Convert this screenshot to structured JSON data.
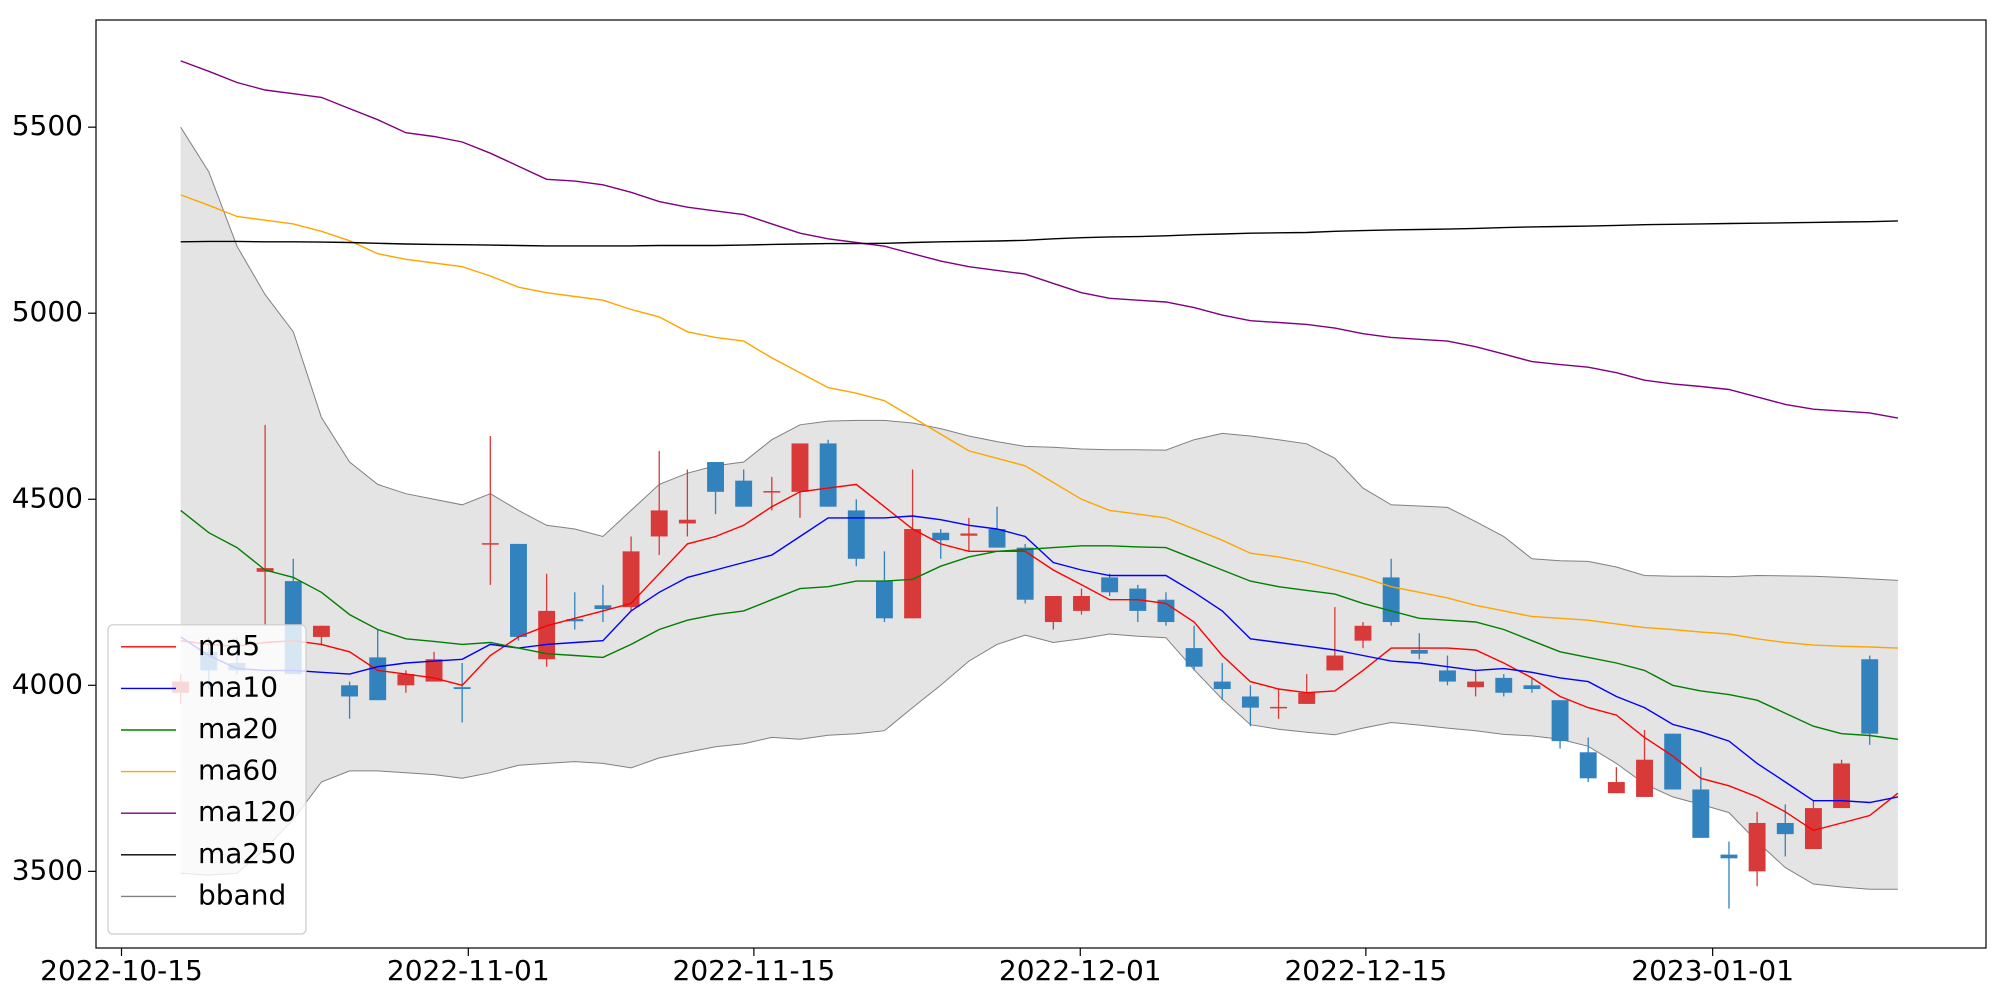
{
  "chart_data": {
    "type": "candlestick",
    "x": [
      2.9,
      4.28,
      5.66,
      7.04,
      8.42,
      9.8,
      11.18,
      12.56,
      13.94,
      15.32,
      16.7,
      18.08,
      19.46,
      20.84,
      22.22,
      23.6,
      24.98,
      26.36,
      27.74,
      29.12,
      30.5,
      31.88,
      33.26,
      34.64,
      36.02,
      37.4,
      38.78,
      40.16,
      41.54,
      42.92,
      44.3,
      45.68,
      47.06,
      48.44,
      49.82,
      51.2,
      52.58,
      53.96,
      55.34,
      56.72,
      58.1,
      59.48,
      60.86,
      62.24,
      63.62,
      65,
      66.38,
      67.76,
      69.14,
      70.52,
      71.9,
      73.28,
      74.66,
      76.04,
      77.42,
      78.8,
      80.18,
      81.56,
      82.94,
      84.32,
      85.7,
      87.08
    ],
    "open": [
      3980,
      4090,
      4060,
      4305,
      4280,
      4130,
      4000,
      4075,
      4000,
      4010,
      3995,
      4378,
      4380,
      4070,
      4178,
      4215,
      4210,
      4400,
      4435,
      4600,
      4550,
      4518,
      4520,
      4650,
      4470,
      4280,
      4180,
      4410,
      4402,
      4420,
      4370,
      4170,
      4200,
      4290,
      4260,
      4230,
      4100,
      4010,
      3970,
      3938,
      3950,
      4040,
      4120,
      4290,
      4095,
      4040,
      3995,
      4020,
      4000,
      3960,
      3820,
      3710,
      3700,
      3870,
      3720,
      3545,
      3500,
      3630,
      3560,
      3670,
      4070,
      null
    ],
    "high": [
      4030,
      4130,
      4130,
      4700,
      4340,
      4160,
      4010,
      4150,
      4040,
      4090,
      4060,
      4670,
      4380,
      4300,
      4250,
      4270,
      4400,
      4630,
      4580,
      4600,
      4580,
      4560,
      4650,
      4660,
      4500,
      4360,
      4580,
      4420,
      4450,
      4480,
      4380,
      4240,
      4260,
      4300,
      4270,
      4250,
      4160,
      4060,
      4000,
      3990,
      4030,
      4210,
      4170,
      4340,
      4140,
      4080,
      4040,
      4030,
      4020,
      3960,
      3860,
      3780,
      3880,
      3870,
      3780,
      3580,
      3660,
      3680,
      3690,
      3800,
      4080,
      null
    ],
    "low": [
      3950,
      3990,
      4030,
      4160,
      4030,
      4110,
      3910,
      3960,
      3980,
      4010,
      3900,
      4270,
      4120,
      4050,
      4150,
      4170,
      4200,
      4350,
      4400,
      4460,
      4480,
      4470,
      4450,
      4480,
      4320,
      4170,
      4180,
      4340,
      4360,
      4370,
      4220,
      4150,
      4190,
      4240,
      4170,
      4160,
      4040,
      3960,
      3890,
      3910,
      3950,
      4040,
      4100,
      4160,
      4070,
      4000,
      3970,
      3970,
      3980,
      3830,
      3740,
      3710,
      3700,
      3720,
      3590,
      3400,
      3460,
      3540,
      3560,
      3670,
      3840,
      null
    ],
    "close": [
      4010,
      4040,
      4040,
      4315,
      4030,
      4160,
      3970,
      3960,
      4030,
      4070,
      3990,
      4382,
      4130,
      4200,
      4172,
      4205,
      4360,
      4470,
      4445,
      4520,
      4480,
      4522,
      4650,
      4480,
      4340,
      4180,
      4420,
      4390,
      4408,
      4370,
      4230,
      4240,
      4240,
      4250,
      4200,
      4170,
      4050,
      3990,
      3940,
      3942,
      3980,
      4080,
      4160,
      4170,
      4085,
      4010,
      4010,
      3980,
      3990,
      3850,
      3750,
      3740,
      3800,
      3720,
      3590,
      3535,
      3630,
      3600,
      3670,
      3790,
      3870,
      null
    ],
    "up_color": "#d83a3a",
    "down_color": "#3282bd",
    "series": [
      {
        "name": "ma5",
        "color": "#ff0000",
        "values": [
          4120,
          4110,
          4105,
          4115,
          4120,
          4110,
          4090,
          4040,
          4030,
          4020,
          4000,
          4080,
          4130,
          4160,
          4180,
          4200,
          4220,
          4300,
          4380,
          4400,
          4430,
          4480,
          4520,
          4530,
          4540,
          4480,
          4420,
          4380,
          4360,
          4360,
          4360,
          4310,
          4270,
          4230,
          4230,
          4220,
          4170,
          4080,
          4010,
          3990,
          3980,
          3985,
          4040,
          4100,
          4100,
          4100,
          4095,
          4060,
          4020,
          3970,
          3940,
          3920,
          3860,
          3810,
          3750,
          3730,
          3700,
          3660,
          3610,
          3630,
          3650,
          3710
        ]
      },
      {
        "name": "ma10",
        "color": "#0000ff",
        "values": [
          4130,
          4080,
          4045,
          4040,
          4040,
          4035,
          4030,
          4050,
          4060,
          4065,
          4070,
          4110,
          4100,
          4110,
          4115,
          4120,
          4200,
          4250,
          4290,
          4310,
          4330,
          4350,
          4400,
          4450,
          4450,
          4450,
          4455,
          4445,
          4430,
          4420,
          4400,
          4330,
          4310,
          4295,
          4295,
          4295,
          4250,
          4200,
          4125,
          4115,
          4105,
          4095,
          4080,
          4065,
          4060,
          4050,
          4040,
          4045,
          4035,
          4020,
          4010,
          3970,
          3940,
          3895,
          3875,
          3850,
          3790,
          3740,
          3690,
          3690,
          3685,
          3700
        ]
      },
      {
        "name": "ma20",
        "color": "#008000",
        "values": [
          4470,
          4410,
          4370,
          4310,
          4290,
          4250,
          4190,
          4150,
          4125,
          4118,
          4110,
          4115,
          4100,
          4085,
          4080,
          4075,
          4110,
          4150,
          4175,
          4190,
          4200,
          4230,
          4260,
          4265,
          4280,
          4280,
          4285,
          4320,
          4345,
          4360,
          4365,
          4370,
          4375,
          4375,
          4372,
          4370,
          4340,
          4310,
          4280,
          4265,
          4255,
          4245,
          4220,
          4200,
          4180,
          4175,
          4170,
          4150,
          4120,
          4090,
          4075,
          4060,
          4040,
          4000,
          3985,
          3975,
          3960,
          3925,
          3890,
          3870,
          3865,
          3855
        ]
      },
      {
        "name": "ma60",
        "color": "#ffa500",
        "values": [
          5318,
          5290,
          5260,
          5250,
          5240,
          5220,
          5195,
          5160,
          5145,
          5135,
          5125,
          5100,
          5070,
          5055,
          5045,
          5035,
          5010,
          4990,
          4950,
          4935,
          4925,
          4880,
          4840,
          4800,
          4785,
          4765,
          4720,
          4675,
          4630,
          4610,
          4590,
          4545,
          4500,
          4470,
          4460,
          4450,
          4420,
          4390,
          4355,
          4345,
          4330,
          4310,
          4290,
          4265,
          4250,
          4235,
          4215,
          4200,
          4185,
          4180,
          4175,
          4165,
          4155,
          4150,
          4143,
          4138,
          4125,
          4115,
          4108,
          4105,
          4103,
          4100
        ]
      },
      {
        "name": "ma120",
        "color": "#800080",
        "values": [
          5678,
          5650,
          5620,
          5600,
          5590,
          5580,
          5550,
          5520,
          5485,
          5475,
          5460,
          5430,
          5395,
          5360,
          5355,
          5345,
          5325,
          5300,
          5285,
          5275,
          5265,
          5240,
          5215,
          5200,
          5190,
          5180,
          5160,
          5140,
          5125,
          5115,
          5105,
          5080,
          5055,
          5040,
          5035,
          5030,
          5015,
          4995,
          4980,
          4975,
          4970,
          4960,
          4945,
          4935,
          4930,
          4925,
          4910,
          4890,
          4870,
          4862,
          4855,
          4840,
          4820,
          4810,
          4803,
          4795,
          4775,
          4755,
          4742,
          4737,
          4732,
          4718
        ]
      },
      {
        "name": "ma250",
        "color": "#000000",
        "values": [
          5192,
          5193,
          5193,
          5192,
          5192,
          5191,
          5190,
          5188,
          5186,
          5185,
          5184,
          5183,
          5182,
          5181,
          5181,
          5181,
          5181,
          5182,
          5182,
          5182,
          5183,
          5185,
          5186,
          5187,
          5187,
          5188,
          5190,
          5192,
          5193,
          5194,
          5196,
          5200,
          5203,
          5205,
          5206,
          5208,
          5211,
          5213,
          5215,
          5216,
          5217,
          5220,
          5222,
          5224,
          5225,
          5226,
          5228,
          5230,
          5232,
          5233,
          5234,
          5236,
          5238,
          5239,
          5240,
          5241,
          5242,
          5243,
          5244,
          5245,
          5246,
          5248
        ]
      }
    ],
    "band": {
      "name": "bband",
      "color": "#808080",
      "fill": "#e4e4e4",
      "upper": [
        5500,
        5380,
        5180,
        5050,
        4950,
        4720,
        4600,
        4540,
        4515,
        4500,
        4485,
        4515,
        4470,
        4430,
        4420,
        4400,
        4470,
        4540,
        4570,
        4590,
        4600,
        4660,
        4700,
        4710,
        4712,
        4712,
        4705,
        4690,
        4670,
        4655,
        4642,
        4640,
        4635,
        4633,
        4633,
        4632,
        4660,
        4677,
        4670,
        4660,
        4649,
        4610,
        4530,
        4485,
        4482,
        4478,
        4440,
        4400,
        4340,
        4335,
        4333,
        4318,
        4295,
        4293,
        4293,
        4292,
        4295,
        4294,
        4293,
        4290,
        4286,
        4282
      ],
      "lower": [
        3495,
        3490,
        3495,
        3560,
        3640,
        3740,
        3770,
        3770,
        3765,
        3760,
        3750,
        3765,
        3785,
        3790,
        3795,
        3790,
        3778,
        3805,
        3820,
        3835,
        3843,
        3860,
        3855,
        3866,
        3870,
        3878,
        3940,
        4000,
        4065,
        4110,
        4135,
        4115,
        4125,
        4138,
        4132,
        4128,
        4042,
        3963,
        3894,
        3882,
        3874,
        3867,
        3885,
        3900,
        3893,
        3885,
        3878,
        3868,
        3864,
        3855,
        3836,
        3790,
        3735,
        3700,
        3680,
        3658,
        3580,
        3510,
        3466,
        3458,
        3452,
        3452
      ]
    },
    "xlim": [
      -1.25,
      91.4
    ],
    "xticks": [
      {
        "value": 0,
        "label": "2022-10-15"
      },
      {
        "value": 17,
        "label": "2022-11-01"
      },
      {
        "value": 31,
        "label": "2022-11-15"
      },
      {
        "value": 47,
        "label": "2022-12-01"
      },
      {
        "value": 61,
        "label": "2022-12-15"
      },
      {
        "value": 78,
        "label": "2023-01-01"
      }
    ],
    "ylim": [
      3294,
      5788
    ],
    "yticks": [
      3500,
      4000,
      4500,
      5000,
      5500
    ],
    "legend": "lower left"
  }
}
